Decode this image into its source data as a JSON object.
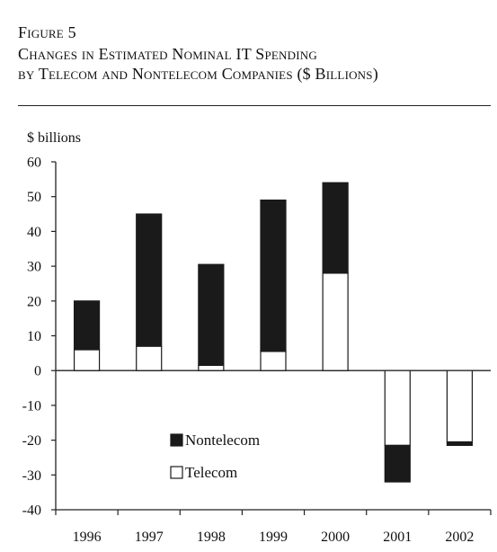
{
  "figure": {
    "label": "Figure 5",
    "title_line1": "Changes in Estimated Nominal IT Spending",
    "title_line2": "by Telecom and Nontelecom Companies ($ Billions)"
  },
  "chart_data": {
    "type": "bar",
    "stacked": true,
    "title": "Changes in Estimated Nominal IT Spending by Telecom and Nontelecom Companies ($ Billions)",
    "ylabel": "$ billions",
    "xlabel": "",
    "ylim": [
      -40,
      60
    ],
    "yticks": [
      60,
      50,
      40,
      30,
      20,
      10,
      0,
      -10,
      -20,
      -30,
      -40
    ],
    "categories": [
      "1996",
      "1997",
      "1998",
      "1999",
      "2000",
      "2001",
      "2002"
    ],
    "series": [
      {
        "name": "Telecom",
        "color": "#ffffff",
        "values": [
          6,
          7,
          1.5,
          5.5,
          28,
          -21.5,
          -20.5
        ]
      },
      {
        "name": "Nontelecom",
        "color": "#1a1a1a",
        "values": [
          14,
          38,
          29,
          43.5,
          26,
          -10.5,
          -1
        ]
      }
    ],
    "legend_placement": "lower-center",
    "grid": false
  }
}
